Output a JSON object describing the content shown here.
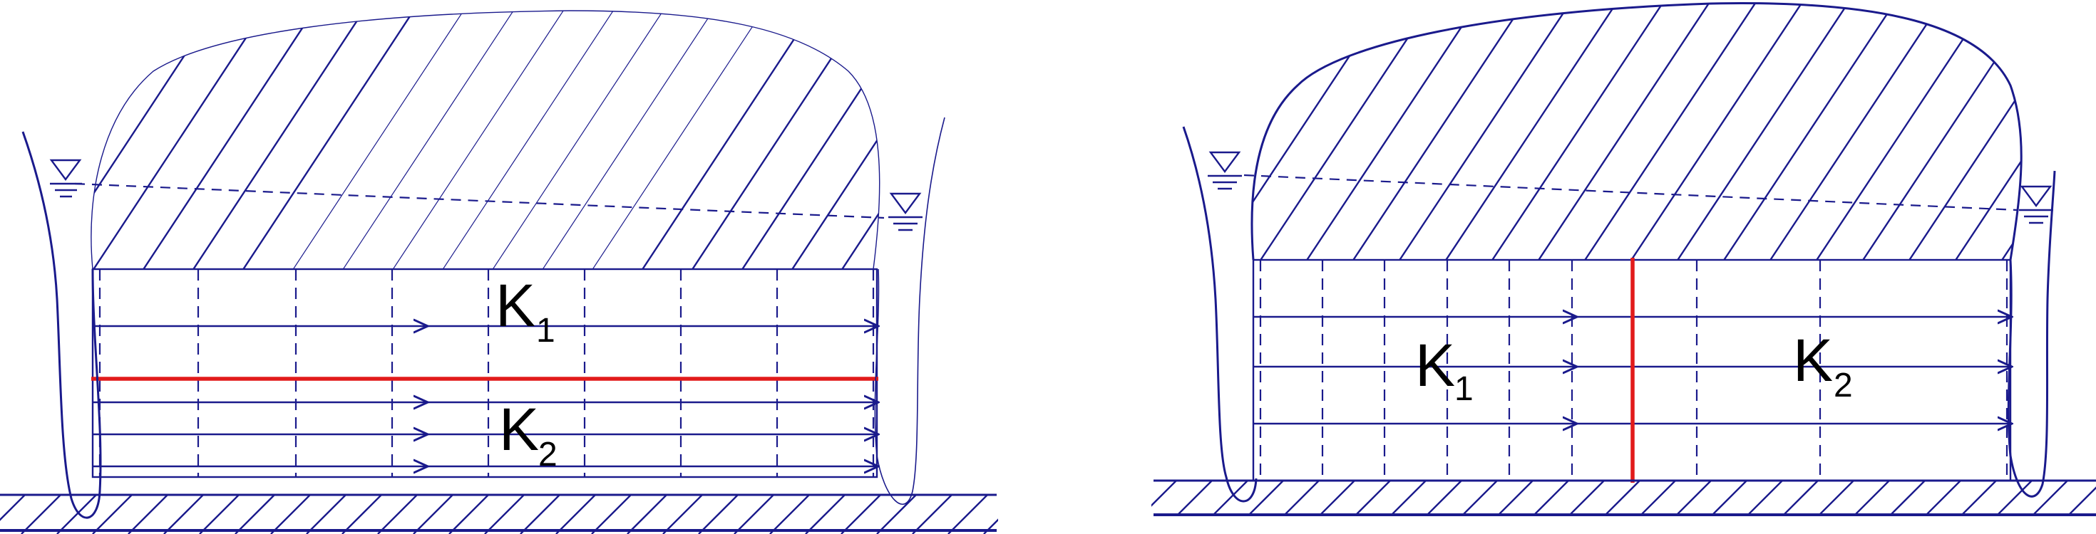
{
  "colors": {
    "stroke": "#1a1a8c",
    "hatch": "#1a1a8c",
    "divider": "#e21b1b",
    "text": "#000000"
  },
  "panels": {
    "left": {
      "layer_top": {
        "letter": "K",
        "subscript": "1"
      },
      "layer_bottom": {
        "letter": "K",
        "subscript": "2"
      }
    },
    "right": {
      "zone_left": {
        "letter": "K",
        "subscript": "1"
      },
      "zone_right": {
        "letter": "K",
        "subscript": "2"
      }
    }
  }
}
